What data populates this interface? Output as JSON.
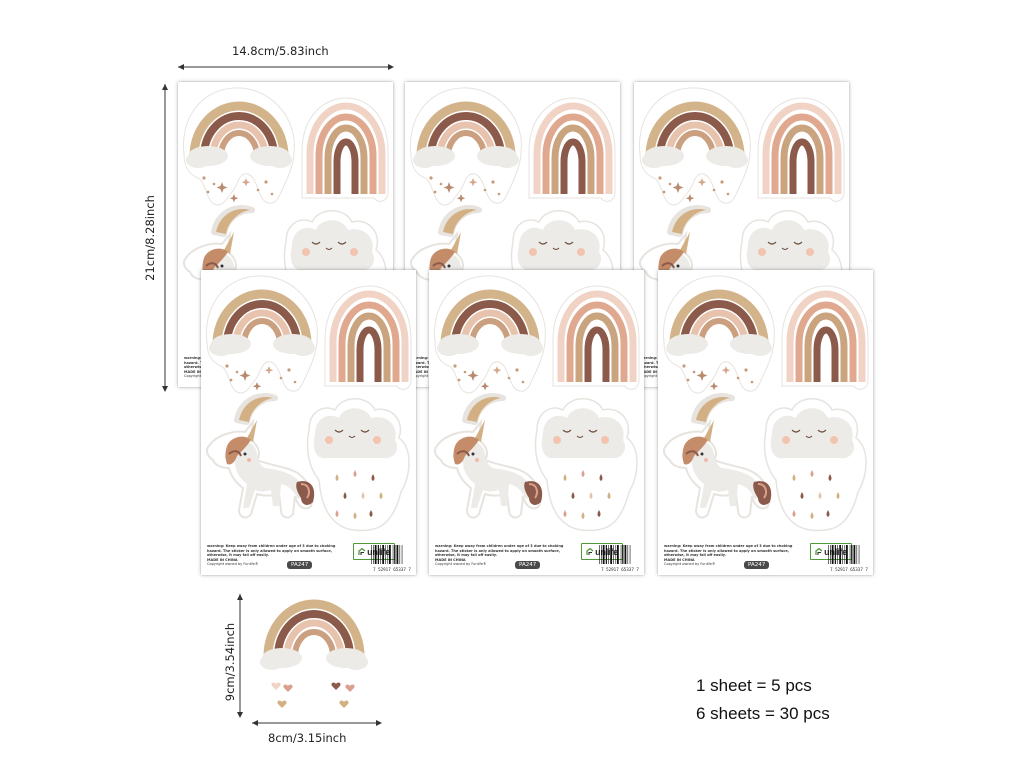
{
  "dimensions": {
    "sheet_width": "14.8cm/5.83inch",
    "sheet_height": "21cm/8.28inch",
    "sticker_height": "9cm/3.54inch",
    "sticker_width": "8cm/3.15inch"
  },
  "sheet_text": {
    "warning_line1": "warning: Keep away from children under age of 3 due to choking",
    "warning_line2": "hazard. The sticker is only allowed to apply on smooth surface,",
    "warning_line3": "otherwise, it may fall off easily.",
    "made_in": "MADE IN CHINA",
    "copyright": "Copyright owned by Funlife®",
    "product_code": "PA247",
    "brand": "unlife",
    "barcode_number": "7 52917 65337 7"
  },
  "info": {
    "line1": "1 sheet = 5 pcs",
    "line2": "6 sheets = 30 pcs"
  },
  "colors": {
    "brand_green": "#4f9a3a",
    "rainbow_brown": "#8b5a4a",
    "rainbow_pink": "#d9a08c",
    "rainbow_tan": "#d3b48a",
    "cloud_gray": "#ececea"
  }
}
